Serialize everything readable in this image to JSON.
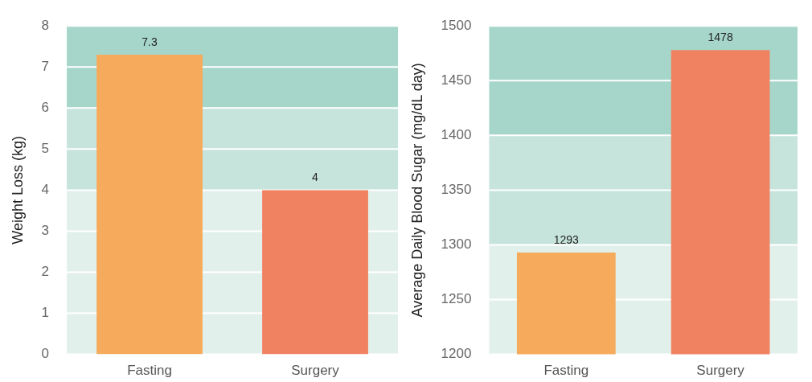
{
  "chart_data": [
    {
      "type": "bar",
      "ylabel": "Weight Loss (kg)",
      "categories": [
        "Fasting",
        "Surgery"
      ],
      "values": [
        7.3,
        4
      ],
      "colors": [
        "#f6aa5c",
        "#f08262"
      ],
      "ylim": [
        0,
        8
      ],
      "yticks": [
        0,
        1,
        2,
        3,
        4,
        5,
        6,
        7,
        8
      ],
      "grid": "y",
      "data_labels": true,
      "bands": [
        {
          "axis": "y",
          "from": 0,
          "to": 4,
          "color": "#e2f0eb"
        },
        {
          "axis": "y",
          "from": 4,
          "to": 6,
          "color": "#c6e4dc"
        },
        {
          "axis": "y",
          "from": 6,
          "to": 8,
          "color": "#a6d6ca"
        }
      ]
    },
    {
      "type": "bar",
      "ylabel": "Average Daily Blood Sugar (mg/dL day)",
      "categories": [
        "Fasting",
        "Surgery"
      ],
      "values": [
        1293,
        1478
      ],
      "colors": [
        "#f6aa5c",
        "#f08262"
      ],
      "ylim": [
        1200,
        1500
      ],
      "yticks": [
        1200,
        1250,
        1300,
        1350,
        1400,
        1450,
        1500
      ],
      "grid": "y",
      "data_labels": true,
      "bands": [
        {
          "axis": "y",
          "from": 1200,
          "to": 1300,
          "color": "#e2f0eb"
        },
        {
          "axis": "y",
          "from": 1300,
          "to": 1400,
          "color": "#c6e4dc"
        },
        {
          "axis": "y",
          "from": 1400,
          "to": 1500,
          "color": "#a6d6ca"
        }
      ]
    }
  ]
}
